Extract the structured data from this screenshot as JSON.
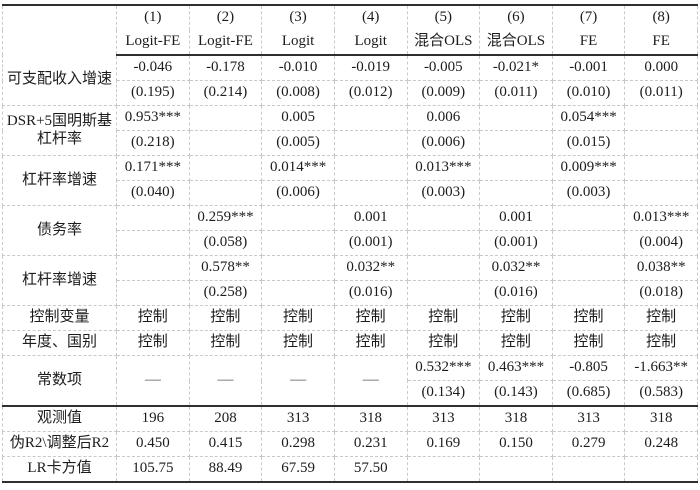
{
  "table": {
    "header": {
      "numbers": [
        "(1)",
        "(2)",
        "(3)",
        "(4)",
        "(5)",
        "(6)",
        "(7)",
        "(8)"
      ],
      "models": [
        "Logit-FE",
        "Logit-FE",
        "Logit",
        "Logit",
        "混合OLS",
        "混合OLS",
        "FE",
        "FE"
      ]
    },
    "groups": [
      {
        "label": "可支配收入增速",
        "coef": [
          "-0.046",
          "-0.178",
          "-0.010",
          "-0.019",
          "-0.005",
          "-0.021*",
          "-0.001",
          "0.000"
        ],
        "se": [
          "(0.195)",
          "(0.214)",
          "(0.008)",
          "(0.012)",
          "(0.009)",
          "(0.011)",
          "(0.010)",
          "(0.011)"
        ]
      },
      {
        "label_line1": "DSR+5国明斯基",
        "label_line2": "杠杆率",
        "coef": [
          "0.953***",
          "",
          "0.005",
          "",
          "0.006",
          "",
          "0.054***",
          ""
        ],
        "se": [
          "(0.218)",
          "",
          "(0.005)",
          "",
          "(0.006)",
          "",
          "(0.015)",
          ""
        ]
      },
      {
        "label": "杠杆率增速",
        "coef": [
          "0.171***",
          "",
          "0.014***",
          "",
          "0.013***",
          "",
          "0.009***",
          ""
        ],
        "se": [
          "(0.040)",
          "",
          "(0.006)",
          "",
          "(0.003)",
          "",
          "(0.003)",
          ""
        ]
      },
      {
        "label": "债务率",
        "coef": [
          "",
          "0.259***",
          "",
          "0.001",
          "",
          "0.001",
          "",
          "0.013***"
        ],
        "se": [
          "",
          "(0.058)",
          "",
          "(0.001)",
          "",
          "(0.001)",
          "",
          "(0.004)"
        ]
      },
      {
        "label": "杠杆率增速",
        "coef": [
          "",
          "0.578**",
          "",
          "0.032**",
          "",
          "0.032**",
          "",
          "0.038**"
        ],
        "se": [
          "",
          "(0.258)",
          "",
          "(0.016)",
          "",
          "(0.016)",
          "",
          "(0.018)"
        ]
      }
    ],
    "single_rows": [
      {
        "label": "控制变量",
        "values": [
          "控制",
          "控制",
          "控制",
          "控制",
          "控制",
          "控制",
          "控制",
          "控制"
        ]
      },
      {
        "label": "年度、国别",
        "values": [
          "控制",
          "控制",
          "控制",
          "控制",
          "控制",
          "控制",
          "控制",
          "控制"
        ]
      }
    ],
    "constant": {
      "label": "常数项",
      "dash": "—",
      "coef": [
        "",
        "",
        "",
        "",
        "0.532***",
        "0.463***",
        "-0.805",
        "-1.663**"
      ],
      "se": [
        "",
        "",
        "",
        "",
        "(0.134)",
        "(0.143)",
        "(0.685)",
        "(0.583)"
      ]
    },
    "stats": [
      {
        "label": "观测值",
        "values": [
          "196",
          "208",
          "313",
          "318",
          "313",
          "318",
          "313",
          "318"
        ]
      },
      {
        "label": "伪R2\\调整后R2",
        "values": [
          "0.450",
          "0.415",
          "0.298",
          "0.231",
          "0.169",
          "0.150",
          "0.279",
          "0.248"
        ]
      },
      {
        "label": "LR卡方值",
        "values": [
          "105.75",
          "88.49",
          "67.59",
          "57.50",
          "",
          "",
          "",
          ""
        ]
      }
    ]
  }
}
